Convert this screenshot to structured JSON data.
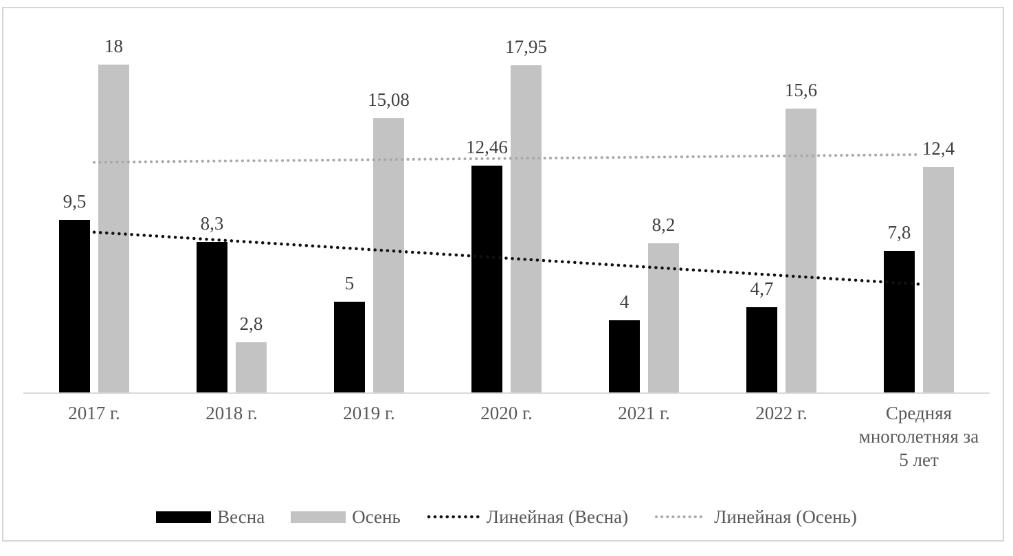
{
  "chart_data": {
    "type": "bar",
    "title": "",
    "xlabel": "",
    "ylabel": "",
    "grid": false,
    "legend_position": "bottom",
    "ylim": [
      0,
      18.5
    ],
    "decimal_separator": ",",
    "categories": [
      "2017 г.",
      "2018 г.",
      "2019 г.",
      "2020 г.",
      "2021 г.",
      "2022 г.",
      "Средняя многолетняя за 5 лет"
    ],
    "series": [
      {
        "name": "Весна",
        "color": "#000000",
        "values": [
          9.5,
          8.3,
          5,
          12.46,
          4,
          4.7,
          7.8
        ],
        "labels": [
          "9,5",
          "8,3",
          "5",
          "12,46",
          "4",
          "4,7",
          "7,8"
        ]
      },
      {
        "name": "Осень",
        "color": "#c3c3c3",
        "values": [
          18,
          2.8,
          15.08,
          17.95,
          8.2,
          15.6,
          12.4
        ],
        "labels": [
          "18",
          "2,8",
          "15,08",
          "17,95",
          "8,2",
          "15,6",
          "12,4"
        ]
      }
    ],
    "trendlines": [
      {
        "name": "Линейная (Весна)",
        "color": "#111111",
        "style": "dotted",
        "start_value": 8.82,
        "end_value": 5.97
      },
      {
        "name": "Линейная (Осень)",
        "color": "#a9a9a9",
        "style": "dotted",
        "start_value": 12.65,
        "end_value": 13.07
      }
    ],
    "axis_line_color": "#d9d9d9",
    "border_color": "#d6d6d6",
    "value_label_color": "#404040",
    "axis_text_color": "#595959"
  }
}
